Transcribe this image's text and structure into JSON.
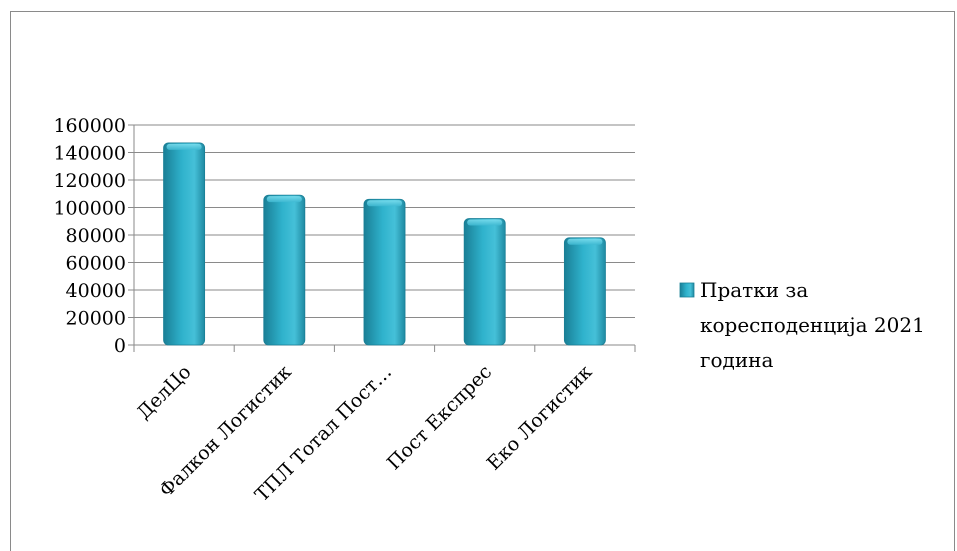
{
  "chart_data": {
    "type": "bar",
    "categories": [
      "ДелЦо",
      "Фалкон Логистик",
      "ТПЛ Тотал Пост…",
      "Пост Експрес",
      "Еко Логистик"
    ],
    "series": [
      {
        "name": "Пратки за коресподенција 2021 година",
        "values": [
          147000,
          109000,
          106000,
          92000,
          78000
        ]
      }
    ],
    "ylim": [
      0,
      160000
    ],
    "yticks": [
      "0",
      "20000",
      "40000",
      "60000",
      "80000",
      "100000",
      "120000",
      "140000",
      "160000"
    ],
    "grid": true,
    "legend": "right",
    "legend_lines": [
      "Пратки за",
      "коресподенција 2021",
      "година"
    ],
    "colors": {
      "bar": "#2aa5bf",
      "bar_light": "#5fd0e6",
      "bar_dark": "#1a7f96",
      "grid": "#8a8a8a"
    }
  }
}
